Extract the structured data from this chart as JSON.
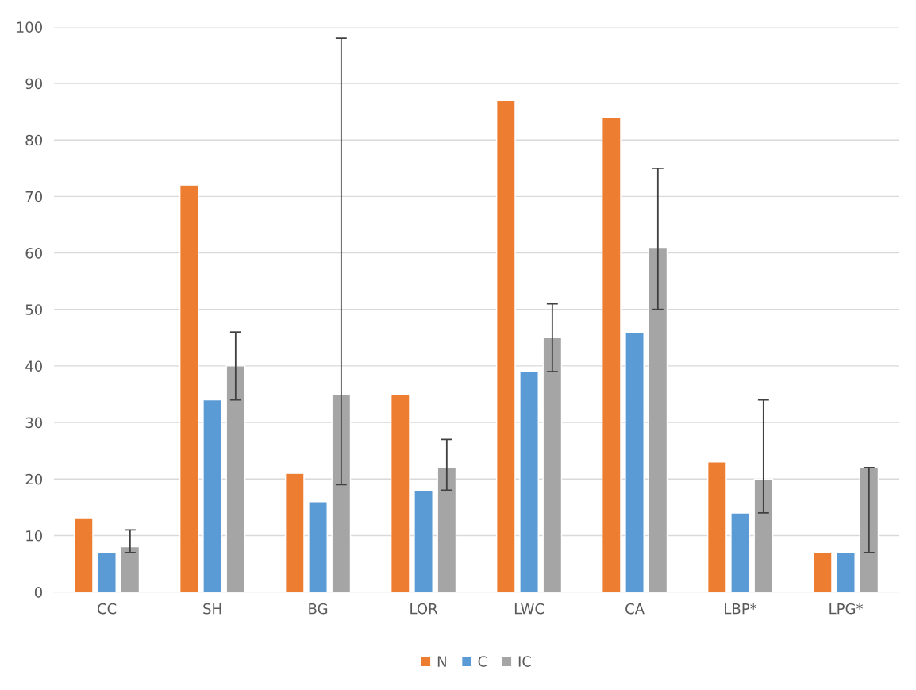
{
  "chart_data": {
    "type": "bar",
    "categories": [
      "CC",
      "SH",
      "BG",
      "LOR",
      "LWC",
      "CA",
      "LBP*",
      "LPG*"
    ],
    "series": [
      {
        "name": "N",
        "color": "#ed7d31",
        "values": [
          13,
          72,
          21,
          35,
          87,
          84,
          23,
          7
        ]
      },
      {
        "name": "C",
        "color": "#5b9bd5",
        "values": [
          7,
          34,
          16,
          18,
          39,
          46,
          14,
          7
        ]
      },
      {
        "name": "IC",
        "color": "#a5a5a5",
        "values": [
          8,
          40,
          35,
          22,
          45,
          61,
          20,
          22
        ],
        "errors": [
          [
            7,
            11
          ],
          [
            34,
            46
          ],
          [
            19,
            98
          ],
          [
            18,
            27
          ],
          [
            39,
            51
          ],
          [
            50,
            75
          ],
          [
            14,
            34
          ],
          [
            7,
            22
          ]
        ]
      }
    ],
    "ylim": [
      0,
      100
    ],
    "yticks": [
      0,
      10,
      20,
      30,
      40,
      50,
      60,
      70,
      80,
      90,
      100
    ],
    "grid": "y",
    "legend": "bottom"
  }
}
